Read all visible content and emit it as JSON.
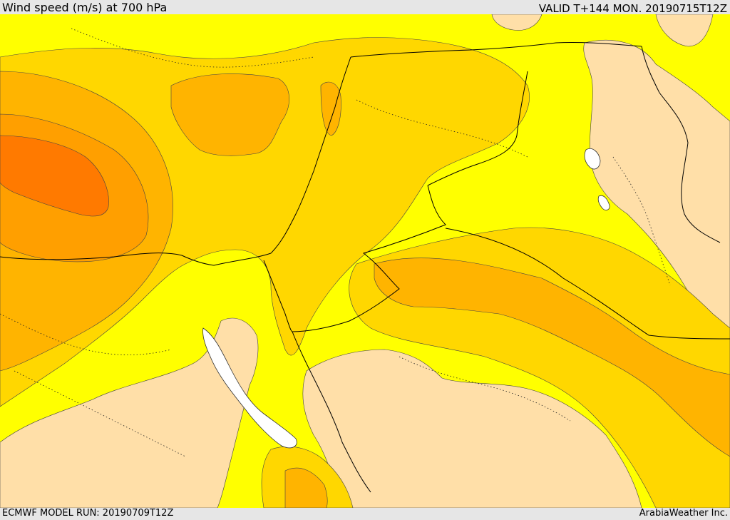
{
  "header": {
    "title": "Wind speed (m/s) at 700 hPa",
    "valid": "VALID T+144 MON. 20190715T12Z"
  },
  "footer": {
    "model_run": "ECMWF MODEL RUN: 20190709T12Z",
    "credit": "ArabiaWeather Inc."
  },
  "colors": {
    "background_field": "#ffff00",
    "band_gold": "#ffd700",
    "band_amber": "#ffb400",
    "band_orange": "#ff8c00",
    "band_dark_orange": "#ff7a00",
    "calm_beige": "#ffdfa8",
    "water": "#ffffff",
    "border": "#000000",
    "chrome": "#e6e6e6"
  }
}
